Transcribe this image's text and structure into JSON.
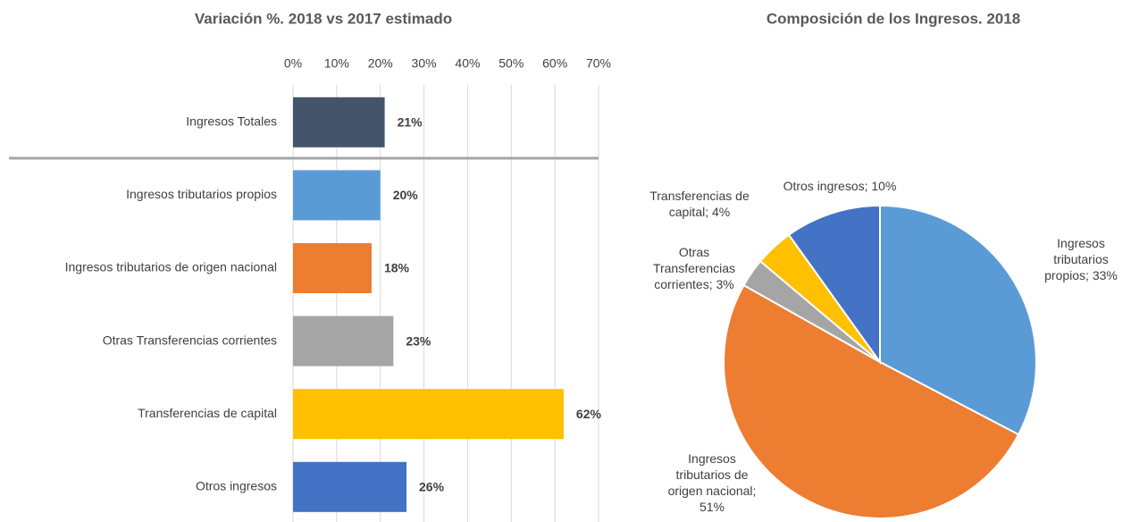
{
  "chart_data": [
    {
      "type": "bar",
      "orientation": "horizontal",
      "title": "Variación %. 2018 vs 2017 estimado",
      "categories": [
        "Ingresos Totales",
        "Ingresos tributarios propios",
        "Ingresos tributarios de origen nacional",
        "Otras Transferencias corrientes",
        "Transferencias de capital",
        "Otros ingresos"
      ],
      "values": [
        21,
        20,
        18,
        23,
        62,
        26
      ],
      "value_labels": [
        "21%",
        "20%",
        "18%",
        "23%",
        "62%",
        "26%"
      ],
      "colors": [
        "#44546a",
        "#5b9bd5",
        "#ed7d31",
        "#a5a5a5",
        "#ffc000",
        "#4472c4"
      ],
      "xlim": [
        0,
        70
      ],
      "xticks": [
        {
          "value": 0,
          "label": "0%"
        },
        {
          "value": 10,
          "label": "10%"
        },
        {
          "value": 20,
          "label": "20%"
        },
        {
          "value": 30,
          "label": "30%"
        },
        {
          "value": 40,
          "label": "40%"
        },
        {
          "value": 50,
          "label": "50%"
        },
        {
          "value": 60,
          "label": "60%"
        },
        {
          "value": 70,
          "label": "70%"
        }
      ],
      "grid": true
    },
    {
      "type": "pie",
      "title": "Composición de los Ingresos. 2018",
      "values": [
        33,
        51,
        3,
        4,
        10
      ],
      "value_labels": [
        "Ingresos tributarios propios; 33%",
        "Ingresos tributarios de origen nacional; 51%",
        "Otras Transferencias corrientes; 3%",
        "Transferencias de capital; 4%",
        "Otros ingresos; 10%"
      ],
      "colors": [
        "#5b9bd5",
        "#ed7d31",
        "#a5a5a5",
        "#ffc000",
        "#4472c4"
      ]
    }
  ]
}
